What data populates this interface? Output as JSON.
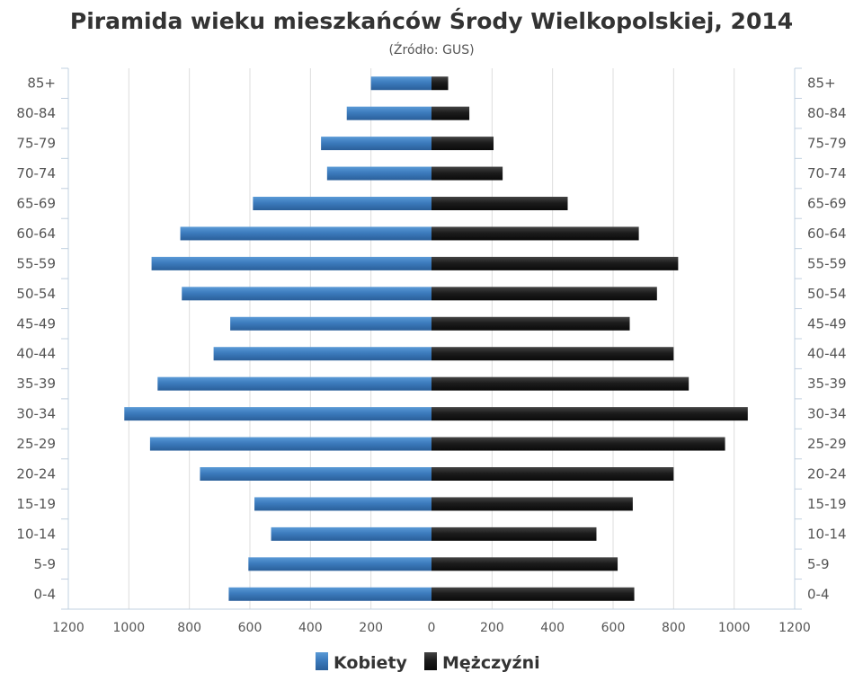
{
  "chart_data": {
    "type": "bar",
    "orientation": "horizontal",
    "title": "Piramida wieku mieszkańców Środy Wielkopolskiej, 2014",
    "subtitle": "(Źródło: GUS)",
    "categories": [
      "0-4",
      "5-9",
      "10-14",
      "15-19",
      "20-24",
      "25-29",
      "30-34",
      "35-39",
      "40-44",
      "45-49",
      "50-54",
      "55-59",
      "60-64",
      "65-69",
      "70-74",
      "75-79",
      "80-84",
      "85+"
    ],
    "xlim": [
      -1200,
      1200
    ],
    "xticks": [
      -1200,
      -1000,
      -800,
      -600,
      -400,
      -200,
      0,
      200,
      400,
      600,
      800,
      1000,
      1200
    ],
    "xtick_labels": [
      "1200",
      "1000",
      "800",
      "600",
      "400",
      "200",
      "0",
      "200",
      "400",
      "600",
      "800",
      "1000",
      "1200"
    ],
    "grid": true,
    "legend_position": "bottom",
    "series": [
      {
        "name": "Kobiety",
        "color": "#3f7fbf",
        "values": [
          670,
          605,
          530,
          585,
          765,
          930,
          1015,
          905,
          720,
          665,
          825,
          925,
          830,
          590,
          345,
          365,
          280,
          200
        ]
      },
      {
        "name": "Mężczyźni",
        "color": "#1a1a1a",
        "values": [
          670,
          615,
          545,
          665,
          800,
          970,
          1045,
          850,
          800,
          655,
          745,
          815,
          685,
          450,
          235,
          205,
          125,
          55
        ]
      }
    ]
  }
}
